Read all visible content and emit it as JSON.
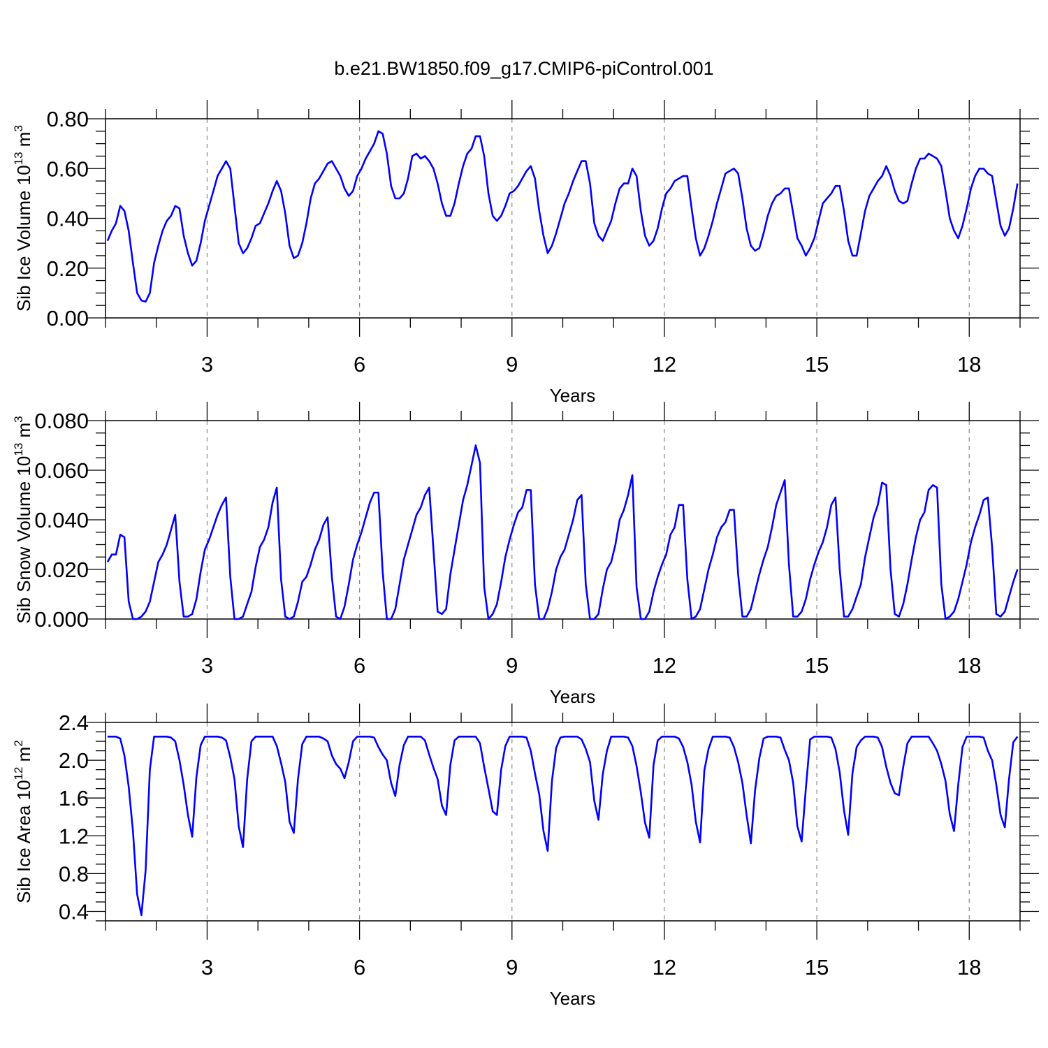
{
  "title": "b.e21.BW1850.f09_g17.CMIP6-piControl.001",
  "colors": {
    "series": "#0000ff",
    "axis": "#000000",
    "grid": "#888888"
  },
  "chart_data": [
    {
      "type": "line",
      "ylabel": "Sib Ice Volume 10",
      "ylabel_exp": "13",
      "ylabel_unit": "m",
      "ylabel_unit_exp": "3",
      "xlabel": "Years",
      "xlim": [
        1,
        19
      ],
      "ylim": [
        0,
        0.8
      ],
      "yticks": [
        0,
        0.2,
        0.4,
        0.6,
        0.8
      ],
      "ytick_labels": [
        "0.00",
        "0.20",
        "0.40",
        "0.60",
        "0.80"
      ],
      "xticks": [
        3,
        6,
        9,
        12,
        15,
        18
      ],
      "xtick_labels": [
        "3",
        "6",
        "9",
        "12",
        "15",
        "18"
      ],
      "x_start": 1.04,
      "x_step": 0.0833,
      "values": [
        0.31,
        0.35,
        0.38,
        0.45,
        0.43,
        0.35,
        0.22,
        0.1,
        0.07,
        0.065,
        0.1,
        0.22,
        0.29,
        0.35,
        0.39,
        0.41,
        0.45,
        0.44,
        0.33,
        0.26,
        0.21,
        0.23,
        0.3,
        0.39,
        0.45,
        0.51,
        0.57,
        0.6,
        0.63,
        0.6,
        0.45,
        0.3,
        0.26,
        0.28,
        0.32,
        0.37,
        0.38,
        0.42,
        0.46,
        0.51,
        0.55,
        0.51,
        0.42,
        0.29,
        0.24,
        0.25,
        0.3,
        0.38,
        0.48,
        0.54,
        0.56,
        0.59,
        0.62,
        0.63,
        0.6,
        0.57,
        0.52,
        0.49,
        0.51,
        0.57,
        0.6,
        0.64,
        0.67,
        0.7,
        0.75,
        0.74,
        0.66,
        0.53,
        0.48,
        0.48,
        0.5,
        0.56,
        0.65,
        0.66,
        0.64,
        0.65,
        0.63,
        0.6,
        0.54,
        0.46,
        0.41,
        0.41,
        0.46,
        0.54,
        0.61,
        0.66,
        0.68,
        0.73,
        0.73,
        0.65,
        0.5,
        0.41,
        0.39,
        0.41,
        0.45,
        0.5,
        0.51,
        0.53,
        0.56,
        0.59,
        0.61,
        0.56,
        0.43,
        0.33,
        0.26,
        0.29,
        0.34,
        0.4,
        0.46,
        0.5,
        0.55,
        0.59,
        0.63,
        0.63,
        0.54,
        0.38,
        0.33,
        0.31,
        0.35,
        0.39,
        0.46,
        0.52,
        0.54,
        0.54,
        0.6,
        0.57,
        0.43,
        0.33,
        0.29,
        0.31,
        0.36,
        0.44,
        0.5,
        0.52,
        0.55,
        0.56,
        0.57,
        0.57,
        0.44,
        0.32,
        0.25,
        0.28,
        0.33,
        0.39,
        0.46,
        0.52,
        0.58,
        0.59,
        0.6,
        0.58,
        0.48,
        0.36,
        0.29,
        0.27,
        0.28,
        0.34,
        0.41,
        0.46,
        0.49,
        0.5,
        0.52,
        0.52,
        0.42,
        0.32,
        0.29,
        0.25,
        0.28,
        0.32,
        0.39,
        0.46,
        0.48,
        0.5,
        0.53,
        0.53,
        0.43,
        0.31,
        0.25,
        0.25,
        0.34,
        0.43,
        0.49,
        0.52,
        0.55,
        0.57,
        0.61,
        0.57,
        0.51,
        0.47,
        0.46,
        0.47,
        0.54,
        0.6,
        0.64,
        0.64,
        0.66,
        0.65,
        0.64,
        0.61,
        0.51,
        0.4,
        0.35,
        0.32,
        0.37,
        0.44,
        0.52,
        0.57,
        0.6,
        0.6,
        0.58,
        0.57,
        0.47,
        0.37,
        0.33,
        0.36,
        0.44,
        0.54
      ]
    },
    {
      "type": "line",
      "ylabel": "Sib Snow Volume 10",
      "ylabel_exp": "13",
      "ylabel_unit": "m",
      "ylabel_unit_exp": "3",
      "xlabel": "Years",
      "xlim": [
        1,
        19
      ],
      "ylim": [
        0,
        0.08
      ],
      "yticks": [
        0,
        0.02,
        0.04,
        0.06,
        0.08
      ],
      "ytick_labels": [
        "0.000",
        "0.020",
        "0.040",
        "0.060",
        "0.080"
      ],
      "xticks": [
        3,
        6,
        9,
        12,
        15,
        18
      ],
      "xtick_labels": [
        "3",
        "6",
        "9",
        "12",
        "15",
        "18"
      ],
      "x_start": 1.04,
      "x_step": 0.0833,
      "values": [
        0.023,
        0.026,
        0.026,
        0.034,
        0.033,
        0.007,
        0.0,
        0.0,
        0.001,
        0.003,
        0.007,
        0.015,
        0.023,
        0.026,
        0.03,
        0.036,
        0.042,
        0.015,
        0.001,
        0.001,
        0.002,
        0.008,
        0.019,
        0.028,
        0.032,
        0.037,
        0.042,
        0.046,
        0.049,
        0.017,
        0.0,
        0.0,
        0.001,
        0.006,
        0.011,
        0.021,
        0.029,
        0.032,
        0.037,
        0.047,
        0.053,
        0.016,
        0.001,
        0.0,
        0.001,
        0.007,
        0.015,
        0.017,
        0.022,
        0.028,
        0.032,
        0.038,
        0.041,
        0.017,
        0.001,
        0.0,
        0.005,
        0.014,
        0.024,
        0.03,
        0.035,
        0.041,
        0.047,
        0.051,
        0.051,
        0.019,
        0.0,
        0.0,
        0.004,
        0.014,
        0.024,
        0.03,
        0.036,
        0.042,
        0.045,
        0.05,
        0.053,
        0.028,
        0.003,
        0.002,
        0.004,
        0.018,
        0.028,
        0.038,
        0.048,
        0.054,
        0.062,
        0.07,
        0.063,
        0.013,
        0.0,
        0.002,
        0.006,
        0.015,
        0.025,
        0.032,
        0.038,
        0.043,
        0.045,
        0.052,
        0.052,
        0.014,
        0.0,
        0.0,
        0.004,
        0.011,
        0.02,
        0.025,
        0.028,
        0.034,
        0.04,
        0.048,
        0.05,
        0.014,
        0.0,
        0.0,
        0.002,
        0.012,
        0.02,
        0.023,
        0.03,
        0.04,
        0.044,
        0.05,
        0.058,
        0.013,
        0.0,
        0.0,
        0.003,
        0.011,
        0.017,
        0.022,
        0.026,
        0.034,
        0.037,
        0.046,
        0.046,
        0.016,
        0.0,
        0.001,
        0.004,
        0.012,
        0.02,
        0.026,
        0.033,
        0.037,
        0.039,
        0.044,
        0.044,
        0.018,
        0.001,
        0.001,
        0.004,
        0.011,
        0.018,
        0.024,
        0.029,
        0.037,
        0.046,
        0.051,
        0.056,
        0.022,
        0.001,
        0.001,
        0.003,
        0.008,
        0.016,
        0.022,
        0.027,
        0.031,
        0.037,
        0.046,
        0.049,
        0.02,
        0.001,
        0.001,
        0.004,
        0.009,
        0.014,
        0.025,
        0.033,
        0.041,
        0.046,
        0.055,
        0.054,
        0.02,
        0.002,
        0.001,
        0.006,
        0.014,
        0.024,
        0.033,
        0.04,
        0.043,
        0.052,
        0.054,
        0.053,
        0.014,
        0.0,
        0.001,
        0.003,
        0.008,
        0.015,
        0.022,
        0.031,
        0.037,
        0.042,
        0.048,
        0.049,
        0.029,
        0.002,
        0.001,
        0.003,
        0.009,
        0.015,
        0.02
      ]
    },
    {
      "type": "line",
      "ylabel": "Sib Ice Area 10",
      "ylabel_exp": "12",
      "ylabel_unit": "m",
      "ylabel_unit_exp": "2",
      "xlabel": "Years",
      "xlim": [
        1,
        19
      ],
      "ylim": [
        0.3,
        2.4
      ],
      "yticks": [
        0.4,
        0.8,
        1.2,
        1.6,
        2.0,
        2.4
      ],
      "ytick_labels": [
        "0.4",
        "0.8",
        "1.2",
        "1.6",
        "2.0",
        "2.4"
      ],
      "xticks": [
        3,
        6,
        9,
        12,
        15,
        18
      ],
      "xtick_labels": [
        "3",
        "6",
        "9",
        "12",
        "15",
        "18"
      ],
      "x_start": 1.04,
      "x_step": 0.0833,
      "values": [
        2.25,
        2.25,
        2.25,
        2.23,
        2.05,
        1.72,
        1.25,
        0.58,
        0.36,
        0.83,
        1.9,
        2.25,
        2.25,
        2.25,
        2.25,
        2.24,
        2.2,
        2.0,
        1.74,
        1.42,
        1.19,
        1.82,
        2.16,
        2.25,
        2.25,
        2.25,
        2.25,
        2.24,
        2.21,
        2.03,
        1.8,
        1.3,
        1.08,
        1.8,
        2.2,
        2.25,
        2.25,
        2.25,
        2.25,
        2.25,
        2.15,
        1.97,
        1.77,
        1.35,
        1.23,
        1.8,
        2.17,
        2.25,
        2.25,
        2.25,
        2.25,
        2.23,
        2.2,
        2.05,
        1.96,
        1.91,
        1.81,
        1.98,
        2.2,
        2.25,
        2.25,
        2.25,
        2.25,
        2.24,
        2.14,
        2.06,
        2.0,
        1.76,
        1.62,
        1.95,
        2.16,
        2.25,
        2.25,
        2.25,
        2.25,
        2.21,
        2.06,
        1.92,
        1.8,
        1.52,
        1.42,
        1.95,
        2.21,
        2.25,
        2.25,
        2.25,
        2.25,
        2.25,
        2.18,
        1.93,
        1.7,
        1.46,
        1.42,
        1.9,
        2.15,
        2.25,
        2.25,
        2.25,
        2.25,
        2.24,
        2.1,
        1.86,
        1.64,
        1.25,
        1.04,
        1.78,
        2.13,
        2.24,
        2.25,
        2.25,
        2.25,
        2.25,
        2.22,
        2.12,
        1.98,
        1.57,
        1.37,
        1.85,
        2.1,
        2.25,
        2.25,
        2.25,
        2.25,
        2.24,
        2.15,
        1.94,
        1.66,
        1.34,
        1.18,
        1.95,
        2.21,
        2.25,
        2.25,
        2.25,
        2.25,
        2.23,
        2.14,
        1.98,
        1.74,
        1.35,
        1.13,
        1.89,
        2.12,
        2.25,
        2.25,
        2.25,
        2.25,
        2.24,
        2.14,
        1.98,
        1.76,
        1.42,
        1.12,
        1.68,
        2.02,
        2.23,
        2.25,
        2.25,
        2.25,
        2.24,
        2.11,
        2.0,
        1.76,
        1.3,
        1.14,
        1.7,
        2.22,
        2.25,
        2.25,
        2.25,
        2.25,
        2.24,
        2.12,
        1.87,
        1.47,
        1.21,
        1.86,
        2.14,
        2.21,
        2.25,
        2.25,
        2.25,
        2.24,
        2.14,
        1.93,
        1.76,
        1.65,
        1.63,
        1.93,
        2.18,
        2.25,
        2.25,
        2.25,
        2.25,
        2.25,
        2.18,
        2.1,
        1.96,
        1.78,
        1.43,
        1.25,
        1.74,
        2.14,
        2.25,
        2.25,
        2.25,
        2.25,
        2.24,
        2.1,
        2.0,
        1.74,
        1.42,
        1.29,
        1.8,
        2.19,
        2.25
      ]
    }
  ]
}
